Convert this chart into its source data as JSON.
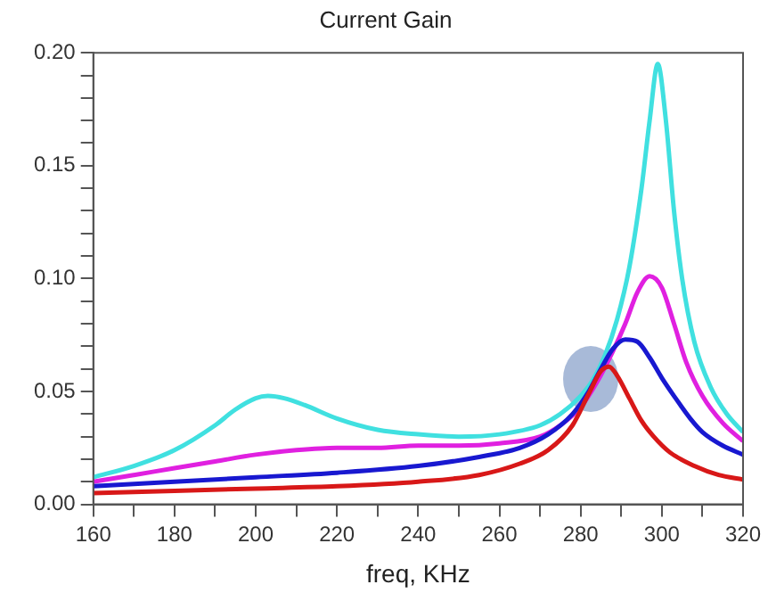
{
  "chart_data": {
    "type": "line",
    "title": "Current Gain",
    "xlabel": "freq, KHz",
    "xlim": [
      160,
      320
    ],
    "xticks": [
      160,
      {
        "value": 170,
        "label": null
      },
      180,
      {
        "value": 190,
        "label": null
      },
      200,
      {
        "value": 210,
        "label": null
      },
      220,
      {
        "value": 230,
        "label": null
      },
      240,
      {
        "value": 250,
        "label": null
      },
      260,
      {
        "value": 270,
        "label": null
      },
      280,
      {
        "value": 290,
        "label": null
      },
      300,
      {
        "value": 310,
        "label": null
      },
      320
    ],
    "ylim": [
      0,
      0.2
    ],
    "yticks": [
      {
        "value": 0,
        "label": "0.00"
      },
      {
        "value": 0.01,
        "label": null
      },
      {
        "value": 0.02,
        "label": null
      },
      {
        "value": 0.03,
        "label": null
      },
      {
        "value": 0.04,
        "label": null
      },
      {
        "value": 0.05,
        "label": "0.05"
      },
      {
        "value": 0.06,
        "label": null
      },
      {
        "value": 0.07,
        "label": null
      },
      {
        "value": 0.08,
        "label": null
      },
      {
        "value": 0.09,
        "label": null
      },
      {
        "value": 0.1,
        "label": "0.10"
      },
      {
        "value": 0.11,
        "label": null
      },
      {
        "value": 0.12,
        "label": null
      },
      {
        "value": 0.13,
        "label": null
      },
      {
        "value": 0.14,
        "label": null
      },
      {
        "value": 0.15,
        "label": "0.15"
      },
      {
        "value": 0.16,
        "label": null
      },
      {
        "value": 0.17,
        "label": null
      },
      {
        "value": 0.18,
        "label": null
      },
      {
        "value": 0.19,
        "label": null
      },
      {
        "value": 0.2,
        "label": "0.20"
      }
    ],
    "grid": false,
    "legend": false,
    "marker": "none",
    "line_style": "solid",
    "series": [
      {
        "color": "#40e0e0",
        "x": [
          160,
          170,
          180,
          190,
          195,
          200,
          203,
          207,
          212,
          220,
          230,
          240,
          250,
          260,
          270,
          275,
          280,
          283,
          286,
          289,
          292,
          295,
          297,
          299,
          301,
          303,
          305,
          308,
          312,
          316,
          320
        ],
        "values": [
          0.012,
          0.017,
          0.024,
          0.035,
          0.042,
          0.047,
          0.048,
          0.047,
          0.044,
          0.038,
          0.033,
          0.031,
          0.03,
          0.031,
          0.035,
          0.04,
          0.048,
          0.055,
          0.066,
          0.082,
          0.105,
          0.14,
          0.17,
          0.195,
          0.17,
          0.13,
          0.1,
          0.072,
          0.052,
          0.04,
          0.032
        ]
      },
      {
        "color": "#e020e0",
        "x": [
          160,
          170,
          180,
          190,
          200,
          210,
          220,
          230,
          240,
          250,
          260,
          270,
          275,
          280,
          284,
          288,
          291,
          294,
          297,
          300,
          303,
          306,
          310,
          315,
          320
        ],
        "values": [
          0.01,
          0.013,
          0.016,
          0.019,
          0.022,
          0.024,
          0.025,
          0.025,
          0.026,
          0.026,
          0.027,
          0.03,
          0.035,
          0.043,
          0.054,
          0.068,
          0.08,
          0.094,
          0.101,
          0.096,
          0.08,
          0.063,
          0.048,
          0.036,
          0.028
        ]
      },
      {
        "color": "#1818d0",
        "x": [
          160,
          180,
          200,
          220,
          240,
          255,
          265,
          272,
          278,
          282,
          285,
          288,
          291,
          294,
          297,
          300,
          303,
          307,
          310,
          315,
          320
        ],
        "values": [
          0.008,
          0.01,
          0.012,
          0.014,
          0.017,
          0.021,
          0.025,
          0.031,
          0.04,
          0.05,
          0.06,
          0.069,
          0.073,
          0.072,
          0.065,
          0.056,
          0.048,
          0.038,
          0.032,
          0.026,
          0.022
        ]
      },
      {
        "color": "#d81818",
        "x": [
          160,
          180,
          200,
          220,
          240,
          255,
          265,
          272,
          278,
          282,
          285,
          287,
          289,
          292,
          295,
          298,
          302,
          308,
          314,
          320
        ],
        "values": [
          0.005,
          0.006,
          0.007,
          0.008,
          0.01,
          0.013,
          0.018,
          0.024,
          0.035,
          0.049,
          0.059,
          0.061,
          0.057,
          0.047,
          0.037,
          0.03,
          0.023,
          0.017,
          0.013,
          0.011
        ]
      }
    ]
  }
}
